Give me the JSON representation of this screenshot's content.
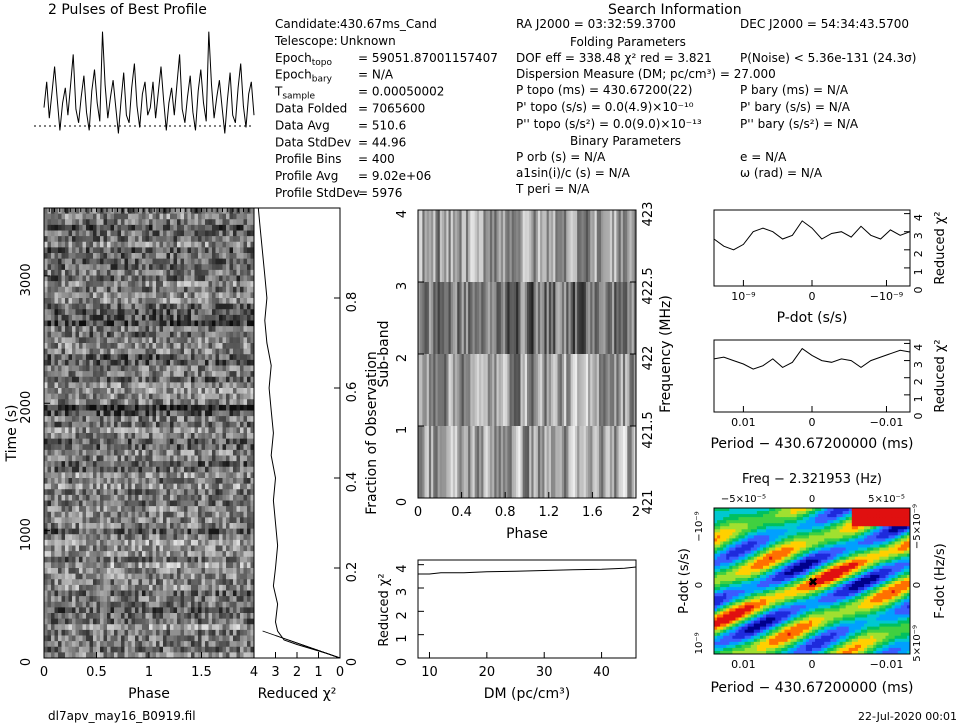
{
  "profile_title": "2 Pulses of Best Profile",
  "search_title": "Search Information",
  "folding_title": "Folding Parameters",
  "binary_title": "Binary Parameters",
  "footer": {
    "filename": "dl7apv_may16_B0919.fil",
    "date": "22-Jul-2020 00:01"
  },
  "info_left": [
    {
      "label": "Candidate:",
      "value": "430.67ms_Cand"
    },
    {
      "label": "Telescope:",
      "value": "Unknown"
    },
    {
      "label": "Epoch",
      "sub": "topo",
      "value": "= 59051.87001157407"
    },
    {
      "label": "Epoch",
      "sub": "bary",
      "value": "= N/A"
    },
    {
      "label": "T",
      "sub": "sample",
      "value": "=   0.00050002"
    },
    {
      "label": "Data Folded",
      "value": "=   7065600"
    },
    {
      "label": "Data Avg",
      "value": "=   510.6"
    },
    {
      "label": "Data StdDev",
      "value": "=   44.96"
    },
    {
      "label": "Profile Bins",
      "value": "=   400"
    },
    {
      "label": "Profile Avg",
      "value": "=   9.02e+06"
    },
    {
      "label": "Profile StdDev",
      "value": "=   5976"
    }
  ],
  "info_mid": {
    "ra": "RA J2000 = 03:32:59.3700",
    "dec": "DEC J2000 = 54:34:43.5700",
    "dof": "DOF eff = 338.48  χ² red = 3.821",
    "pnoise": "P(Noise) < 5.36e-131  (24.3σ)",
    "dm": "Dispersion Measure (DM; pc/cm³) = 27.000",
    "ptopo": "P topo (ms) = 430.67200(22)",
    "pbary": "P bary (ms) = N/A",
    "pdtopo": "P' topo (s/s) = 0.0(4.9)×10⁻¹⁰",
    "pdbary": "P' bary (s/s) = N/A",
    "pddtopo": "P'' topo (s/s²) = 0.0(9.0)×10⁻¹³",
    "pddbary": "P'' bary (s/s²) = N/A",
    "porb": "P orb (s) = N/A",
    "e": "e = N/A",
    "asini": "a1sin(i)/c (s) = N/A",
    "omega": "ω (rad) = N/A",
    "tperi": "T peri = N/A"
  },
  "chart_data": [
    {
      "name": "profile",
      "type": "line",
      "title": "2 Pulses of Best Profile",
      "values": [
        0.45,
        0.62,
        0.38,
        0.55,
        0.72,
        0.5,
        0.3,
        0.48,
        0.58,
        0.4,
        0.6,
        0.8,
        0.44,
        0.35,
        0.52,
        0.66,
        0.42,
        0.3,
        0.56,
        0.7,
        0.48,
        0.36,
        0.95,
        0.6,
        0.38,
        0.52,
        0.63,
        0.45,
        0.28,
        0.5,
        0.68,
        0.4,
        0.35,
        0.58,
        0.74,
        0.46,
        0.32,
        0.54,
        0.62,
        0.4,
        0.45,
        0.62,
        0.38,
        0.55,
        0.72,
        0.5,
        0.3,
        0.48,
        0.58,
        0.4,
        0.6,
        0.8,
        0.44,
        0.35,
        0.52,
        0.66,
        0.42,
        0.3,
        0.56,
        0.7,
        0.48,
        0.36,
        0.95,
        0.6,
        0.38,
        0.52,
        0.63,
        0.45,
        0.28,
        0.5,
        0.68,
        0.4,
        0.35,
        0.58,
        0.74,
        0.46,
        0.32,
        0.54,
        0.62,
        0.4
      ]
    },
    {
      "name": "time_vs_phase",
      "type": "heatmap",
      "xlabel": "Phase",
      "ylabel": "Time (s)",
      "xticks": [
        "0",
        "0.5",
        "1",
        "1.5"
      ],
      "yticks": [
        "0",
        "1000",
        "2000",
        "3000"
      ],
      "xlim": [
        0,
        2
      ],
      "ylim": [
        0,
        3533
      ]
    },
    {
      "name": "fraction_chi2",
      "type": "line",
      "xlabel": "Reduced χ²",
      "ylabel": "Fraction of Observation",
      "xticks": [
        "4",
        "3",
        "2",
        "1",
        "0"
      ],
      "yticks": [
        "0",
        "0.2",
        "0.4",
        "0.6",
        "0.8"
      ],
      "xlim": [
        4,
        0
      ],
      "ylim": [
        0,
        1
      ],
      "points": [
        [
          0.0,
          0.0
        ],
        [
          0.6,
          0.01
        ],
        [
          1.3,
          0.02
        ],
        [
          2.0,
          0.03
        ],
        [
          2.6,
          0.04
        ],
        [
          2.9,
          0.06
        ],
        [
          3.0,
          0.08
        ],
        [
          2.9,
          0.12
        ],
        [
          3.1,
          0.16
        ],
        [
          3.0,
          0.2
        ],
        [
          2.9,
          0.25
        ],
        [
          3.0,
          0.3
        ],
        [
          3.1,
          0.35
        ],
        [
          3.0,
          0.4
        ],
        [
          3.2,
          0.45
        ],
        [
          3.1,
          0.5
        ],
        [
          3.2,
          0.55
        ],
        [
          3.3,
          0.6
        ],
        [
          3.2,
          0.65
        ],
        [
          3.4,
          0.7
        ],
        [
          3.5,
          0.75
        ],
        [
          3.4,
          0.8
        ],
        [
          3.5,
          0.85
        ],
        [
          3.6,
          0.9
        ],
        [
          3.7,
          0.95
        ],
        [
          3.8,
          1.0
        ]
      ]
    },
    {
      "name": "subband_vs_phase",
      "type": "heatmap",
      "xlabel": "Phase",
      "ylabel": "Sub-band",
      "y2label": "Frequency (MHz)",
      "xticks": [
        "0",
        "0.4",
        "0.8",
        "1.2",
        "1.6",
        "2"
      ],
      "yticks": [
        "0",
        "1",
        "2",
        "3",
        "4"
      ],
      "y2ticks": [
        "421",
        "421.5",
        "422",
        "422.5",
        "423"
      ],
      "xlim": [
        0,
        2
      ],
      "ylim": [
        0,
        4
      ],
      "y2lim": [
        421,
        423
      ]
    },
    {
      "name": "dm_chi2",
      "type": "line",
      "xlabel": "DM (pc/cm³)",
      "ylabel": "Reduced χ²",
      "xticks": [
        "10",
        "20",
        "30",
        "40"
      ],
      "yticks": [
        "0",
        "1",
        "2",
        "3",
        "4"
      ],
      "xlim": [
        8,
        46
      ],
      "ylim": [
        0,
        4.2
      ],
      "points": [
        [
          8,
          3.6
        ],
        [
          10,
          3.6
        ],
        [
          12,
          3.65
        ],
        [
          16,
          3.65
        ],
        [
          20,
          3.7
        ],
        [
          25,
          3.72
        ],
        [
          30,
          3.75
        ],
        [
          35,
          3.78
        ],
        [
          40,
          3.8
        ],
        [
          44,
          3.85
        ],
        [
          46,
          3.9
        ]
      ]
    },
    {
      "name": "pdot_chi2",
      "type": "line",
      "xlabel": "P-dot (s/s)",
      "ylabel": "Reduced χ²",
      "xticks": [
        "10⁻⁹",
        "0",
        "−10⁻⁹"
      ],
      "yticks": [
        "0",
        "1",
        "2",
        "3",
        "4"
      ],
      "ylim": [
        0,
        4.2
      ],
      "points": [
        [
          0,
          2.6
        ],
        [
          0.05,
          2.2
        ],
        [
          0.1,
          2.0
        ],
        [
          0.15,
          2.3
        ],
        [
          0.2,
          3.0
        ],
        [
          0.25,
          3.2
        ],
        [
          0.3,
          3.0
        ],
        [
          0.35,
          2.6
        ],
        [
          0.4,
          2.8
        ],
        [
          0.45,
          3.6
        ],
        [
          0.5,
          3.2
        ],
        [
          0.55,
          2.6
        ],
        [
          0.6,
          2.9
        ],
        [
          0.65,
          3.0
        ],
        [
          0.7,
          2.7
        ],
        [
          0.75,
          3.3
        ],
        [
          0.8,
          2.8
        ],
        [
          0.85,
          2.6
        ],
        [
          0.9,
          3.1
        ],
        [
          0.95,
          2.8
        ],
        [
          1.0,
          3.0
        ]
      ]
    },
    {
      "name": "period_chi2",
      "type": "line",
      "xlabel": "Period − 430.67200000 (ms)",
      "ylabel": "Reduced χ²",
      "xticks": [
        "0.01",
        "0",
        "−0.01"
      ],
      "yticks": [
        "0",
        "1",
        "2",
        "3",
        "4"
      ],
      "ylim": [
        0,
        4.2
      ],
      "points": [
        [
          0,
          3.1
        ],
        [
          0.05,
          3.2
        ],
        [
          0.1,
          3.0
        ],
        [
          0.15,
          2.8
        ],
        [
          0.2,
          2.5
        ],
        [
          0.25,
          2.7
        ],
        [
          0.3,
          3.1
        ],
        [
          0.35,
          2.6
        ],
        [
          0.4,
          2.9
        ],
        [
          0.45,
          3.7
        ],
        [
          0.5,
          3.3
        ],
        [
          0.55,
          3.0
        ],
        [
          0.6,
          2.9
        ],
        [
          0.65,
          3.1
        ],
        [
          0.7,
          3.0
        ],
        [
          0.75,
          2.6
        ],
        [
          0.8,
          3.0
        ],
        [
          0.85,
          3.2
        ],
        [
          0.9,
          3.4
        ],
        [
          0.95,
          3.6
        ],
        [
          1.0,
          3.5
        ]
      ]
    },
    {
      "name": "pdot_period_map",
      "type": "heatmap",
      "title": "Freq − 2.321953 (Hz)",
      "xlabel": "Period − 430.67200000 (ms)",
      "ylabel": "P-dot (s/s)",
      "y2label": "F-dot (Hz/s)",
      "xticks": [
        "0.01",
        "0",
        "−0.01"
      ],
      "x2ticks": [
        "−5×10⁻⁵",
        "0",
        "5×10⁻⁵"
      ],
      "yticks": [
        "10⁻⁹",
        "0",
        "−10⁻⁹"
      ],
      "y2ticks": [
        "−5×10⁻⁹",
        "0",
        "5×10⁻⁹"
      ]
    }
  ]
}
